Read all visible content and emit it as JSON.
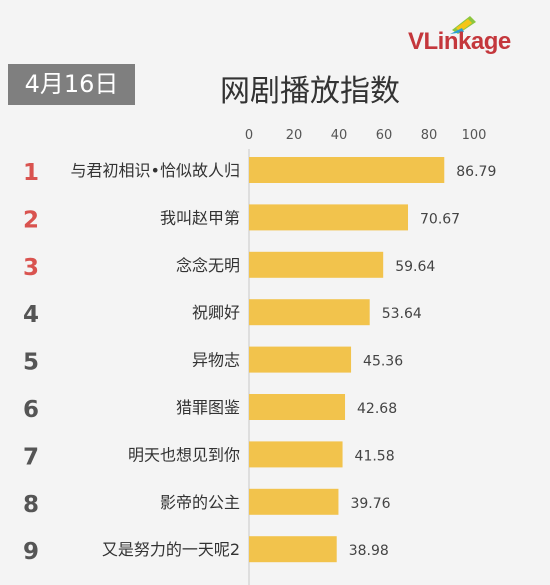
{
  "logo": {
    "text": "VLinkage"
  },
  "date": "4月16日",
  "title": "网剧播放指数",
  "colors": {
    "bar": "#f2c34c",
    "rank_top": "#d9534f",
    "rank_other": "#555555",
    "badge": "#7f7f7f"
  },
  "chart_data": {
    "type": "bar",
    "orientation": "horizontal",
    "title": "网剧播放指数",
    "xlim": [
      0,
      100
    ],
    "ticks": [
      0,
      20,
      40,
      60,
      80,
      100
    ],
    "ranks": [
      "1",
      "2",
      "3",
      "4",
      "5",
      "6",
      "7",
      "8",
      "9"
    ],
    "categories": [
      "与君初相识•恰似故人归",
      "我叫赵甲第",
      "念念无明",
      "祝卿好",
      "异物志",
      "猎罪图鉴",
      "明天也想见到你",
      "影帝的公主",
      "又是努力的一天呢2"
    ],
    "values": [
      86.79,
      70.67,
      59.64,
      53.64,
      45.36,
      42.68,
      41.58,
      39.76,
      38.98
    ],
    "value_labels": [
      "86.79",
      "70.67",
      "59.64",
      "53.64",
      "45.36",
      "42.68",
      "41.58",
      "39.76",
      "38.98"
    ]
  }
}
